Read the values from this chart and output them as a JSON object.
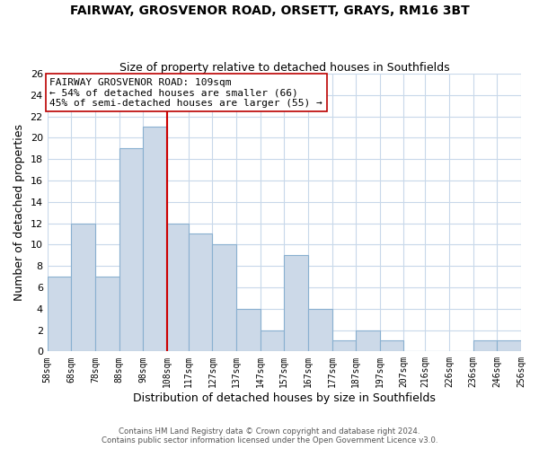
{
  "title": "FAIRWAY, GROSVENOR ROAD, ORSETT, GRAYS, RM16 3BT",
  "subtitle": "Size of property relative to detached houses in Southfields",
  "xlabel": "Distribution of detached houses by size in Southfields",
  "ylabel": "Number of detached properties",
  "bar_color": "#ccd9e8",
  "bar_edge_color": "#89b0d0",
  "vline_x": 108,
  "vline_color": "#cc0000",
  "annotation_title": "FAIRWAY GROSVENOR ROAD: 109sqm",
  "annotation_line1": "← 54% of detached houses are smaller (66)",
  "annotation_line2": "45% of semi-detached houses are larger (55) →",
  "bins": [
    58,
    68,
    78,
    88,
    98,
    108,
    117,
    127,
    137,
    147,
    157,
    167,
    177,
    187,
    197,
    207,
    216,
    226,
    236,
    246,
    256
  ],
  "counts": [
    7,
    12,
    7,
    19,
    21,
    12,
    11,
    10,
    4,
    2,
    9,
    4,
    1,
    2,
    1,
    0,
    0,
    0,
    1,
    1
  ],
  "xlabels": [
    "58sqm",
    "68sqm",
    "78sqm",
    "88sqm",
    "98sqm",
    "108sqm",
    "117sqm",
    "127sqm",
    "137sqm",
    "147sqm",
    "157sqm",
    "167sqm",
    "177sqm",
    "187sqm",
    "197sqm",
    "207sqm",
    "216sqm",
    "226sqm",
    "236sqm",
    "246sqm",
    "256sqm"
  ],
  "ylim": [
    0,
    26
  ],
  "yticks": [
    0,
    2,
    4,
    6,
    8,
    10,
    12,
    14,
    16,
    18,
    20,
    22,
    24,
    26
  ],
  "footer1": "Contains HM Land Registry data © Crown copyright and database right 2024.",
  "footer2": "Contains public sector information licensed under the Open Government Licence v3.0.",
  "bg_color": "#ffffff",
  "grid_color": "#c8d8ea"
}
